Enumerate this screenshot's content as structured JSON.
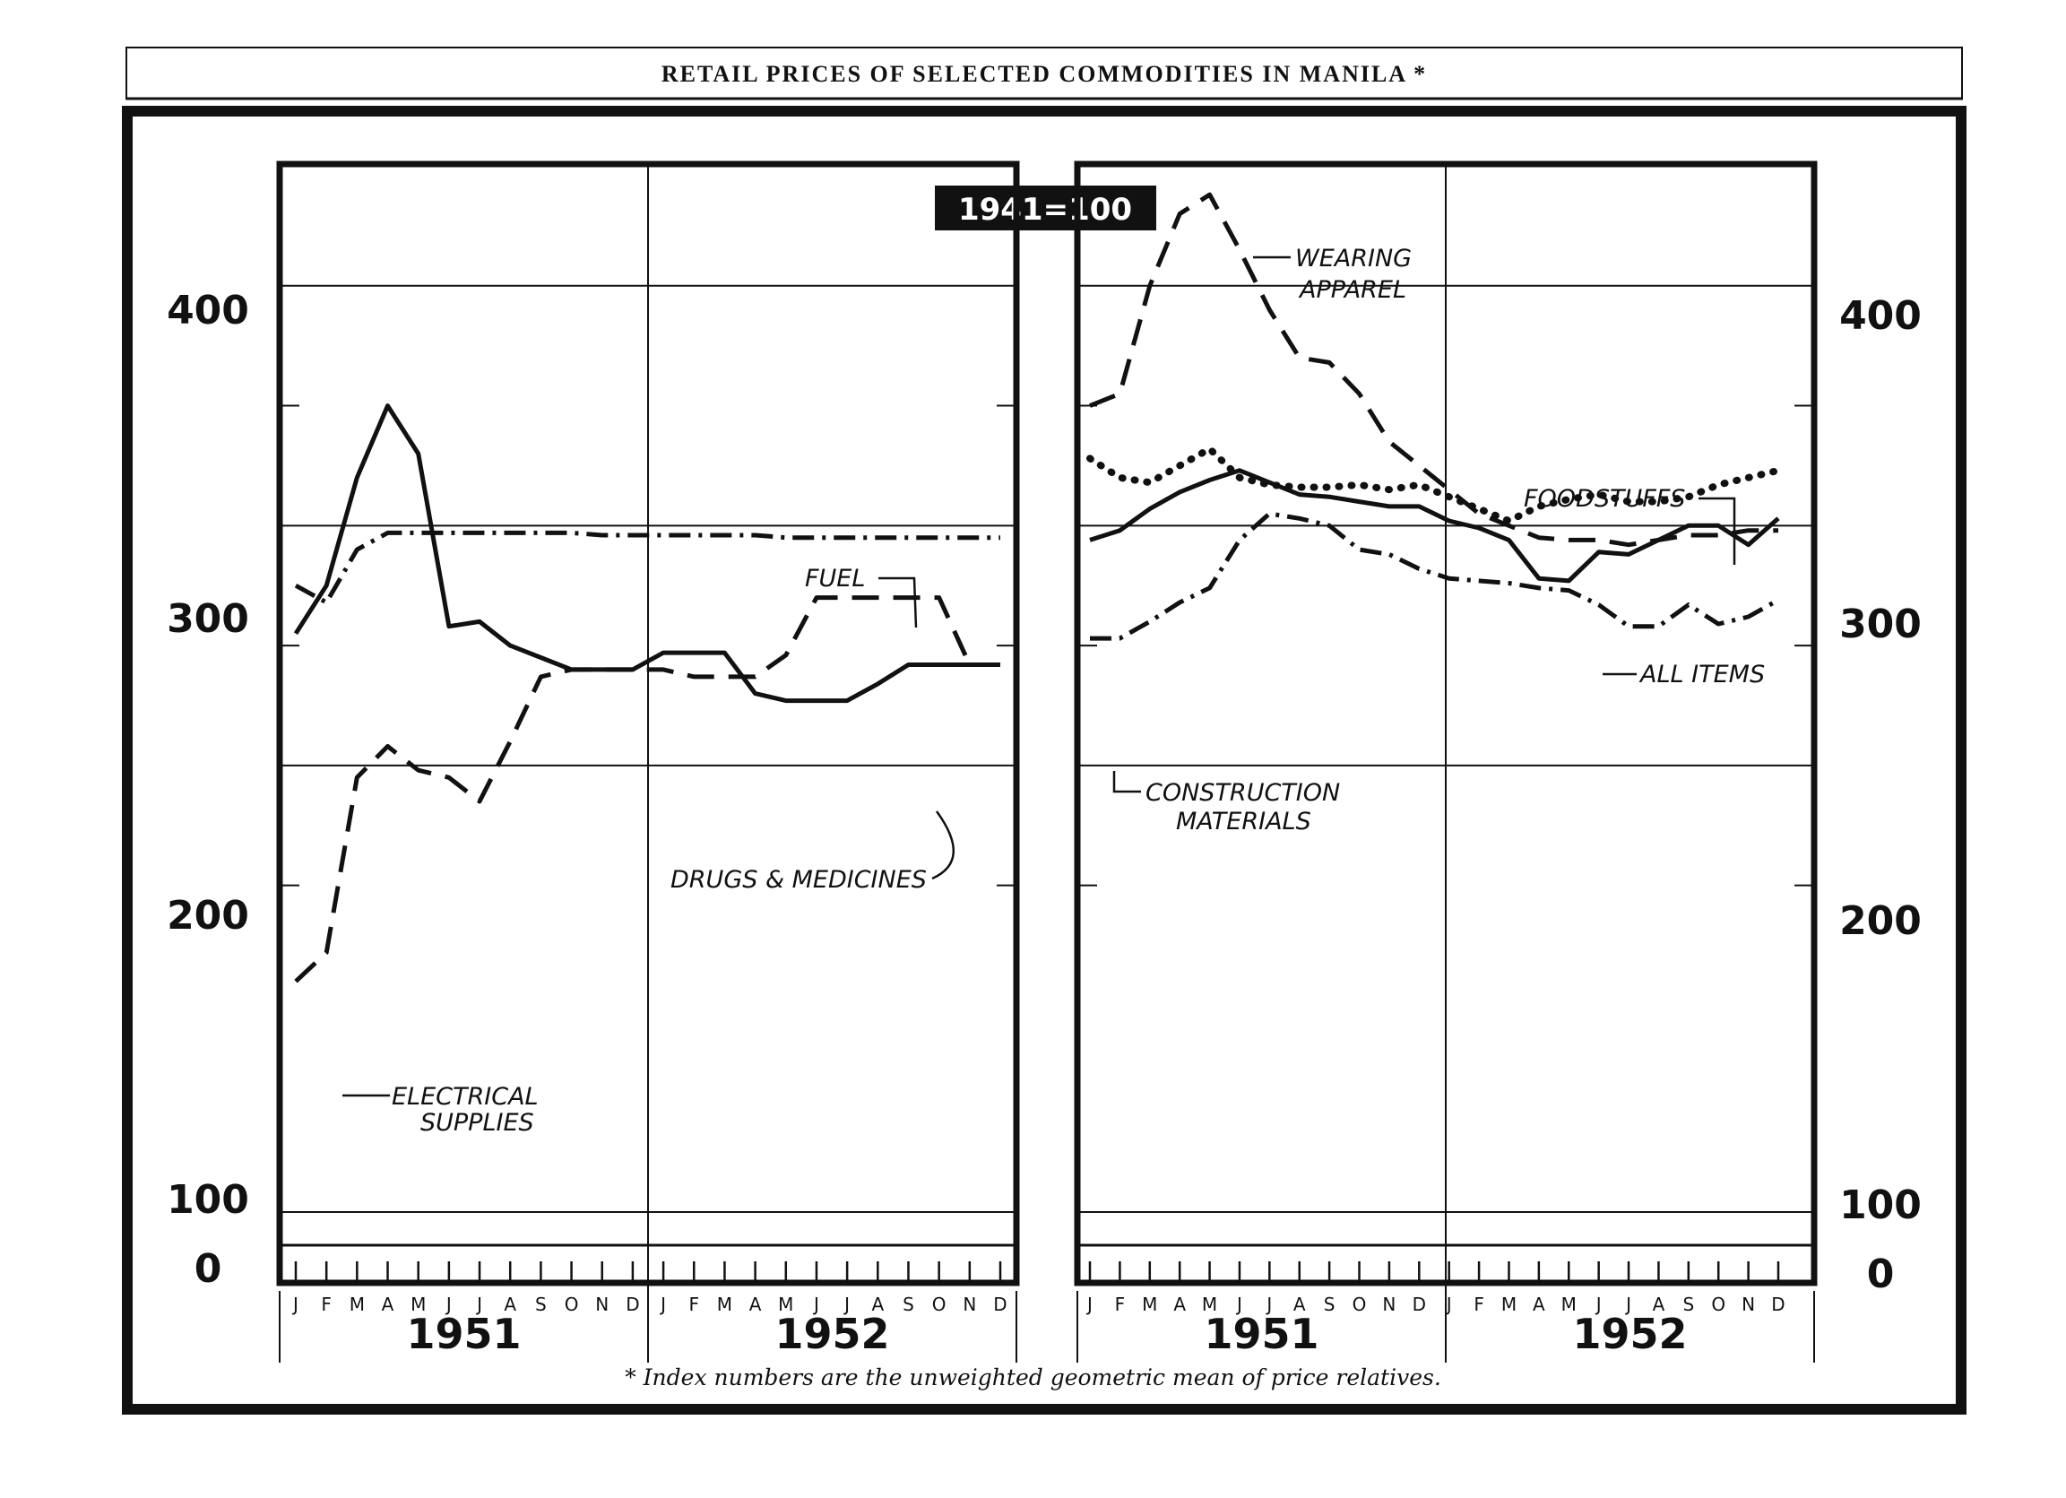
{
  "title": "RETAIL PRICES OF SELECTED COMMODITIES IN MANILA *",
  "base_label": "1941=100",
  "footnote": "* Index numbers are the unweighted geometric mean of price relatives.",
  "chart_data": [
    {
      "type": "line",
      "panel": "left",
      "x": [
        "J",
        "F",
        "M",
        "A",
        "M",
        "J",
        "J",
        "A",
        "S",
        "O",
        "N",
        "D",
        "J",
        "F",
        "M",
        "A",
        "M",
        "J",
        "J",
        "A",
        "S",
        "O",
        "N",
        "D"
      ],
      "year_labels": [
        "1951",
        "1952"
      ],
      "y_ticks": [
        "0",
        "100",
        "200",
        "300",
        "400"
      ],
      "ylim": [
        0,
        450
      ],
      "grid": "horizontal at 100, 200, 300, 400; vertical at year boundary",
      "series": [
        {
          "name": "FUEL",
          "style": "dash-dot",
          "values": [
            275,
            268,
            290,
            297,
            297,
            297,
            297,
            297,
            297,
            297,
            296,
            296,
            296,
            296,
            296,
            296,
            295,
            295,
            295,
            295,
            295,
            295,
            295,
            295
          ]
        },
        {
          "name": "DRUGS & MEDICINES",
          "style": "solid",
          "values": [
            255,
            275,
            320,
            350,
            330,
            258,
            260,
            250,
            245,
            240,
            240,
            240,
            247,
            247,
            247,
            230,
            227,
            227,
            227,
            234,
            242,
            242,
            242,
            242
          ]
        },
        {
          "name": "ELECTRICAL SUPPLIES",
          "style": "dashed",
          "values": [
            110,
            122,
            195,
            208,
            198,
            195,
            185,
            210,
            237,
            240,
            240,
            240,
            240,
            237,
            237,
            237,
            246,
            270,
            270,
            270,
            270,
            270,
            242,
            242
          ]
        }
      ],
      "annotations": [
        "FUEL",
        "DRUGS & MEDICINES",
        "ELECTRICAL SUPPLIES"
      ]
    },
    {
      "type": "line",
      "panel": "right",
      "x": [
        "J",
        "F",
        "M",
        "A",
        "M",
        "J",
        "J",
        "A",
        "S",
        "O",
        "N",
        "D",
        "J",
        "F",
        "M",
        "A",
        "M",
        "J",
        "J",
        "A",
        "S",
        "O",
        "N",
        "D"
      ],
      "year_labels": [
        "1951",
        "1952"
      ],
      "y_ticks": [
        "0",
        "100",
        "200",
        "300",
        "400"
      ],
      "ylim": [
        0,
        450
      ],
      "grid": "horizontal at 100, 200, 300, 400; vertical at year boundary",
      "series": [
        {
          "name": "WEARING APPAREL",
          "style": "dashed",
          "values": [
            350,
            355,
            400,
            430,
            438,
            415,
            390,
            370,
            368,
            355,
            335,
            325,
            315,
            305,
            300,
            295,
            294,
            294,
            292,
            294,
            296,
            296,
            298,
            298
          ]
        },
        {
          "name": "FOODSTUFFS",
          "style": "dotted",
          "values": [
            328,
            320,
            318,
            325,
            332,
            320,
            317,
            316,
            316,
            317,
            315,
            317,
            312,
            307,
            302,
            308,
            311,
            313,
            310,
            310,
            312,
            317,
            320,
            323
          ]
        },
        {
          "name": "ALL ITEMS",
          "style": "solid",
          "values": [
            294,
            298,
            307,
            314,
            319,
            323,
            318,
            313,
            312,
            310,
            308,
            308,
            302,
            299,
            294,
            278,
            277,
            289,
            288,
            294,
            300,
            300,
            292,
            303
          ]
        },
        {
          "name": "CONSTRUCTION MATERIALS",
          "style": "dash-dot",
          "values": [
            253,
            253,
            260,
            268,
            274,
            294,
            305,
            303,
            300,
            290,
            288,
            282,
            278,
            277,
            276,
            274,
            273,
            267,
            258,
            258,
            267,
            259,
            262,
            269
          ]
        }
      ],
      "annotations": [
        "WEARING APPAREL",
        "FOODSTUFFS",
        "ALL ITEMS",
        "CONSTRUCTION MATERIALS"
      ]
    }
  ]
}
